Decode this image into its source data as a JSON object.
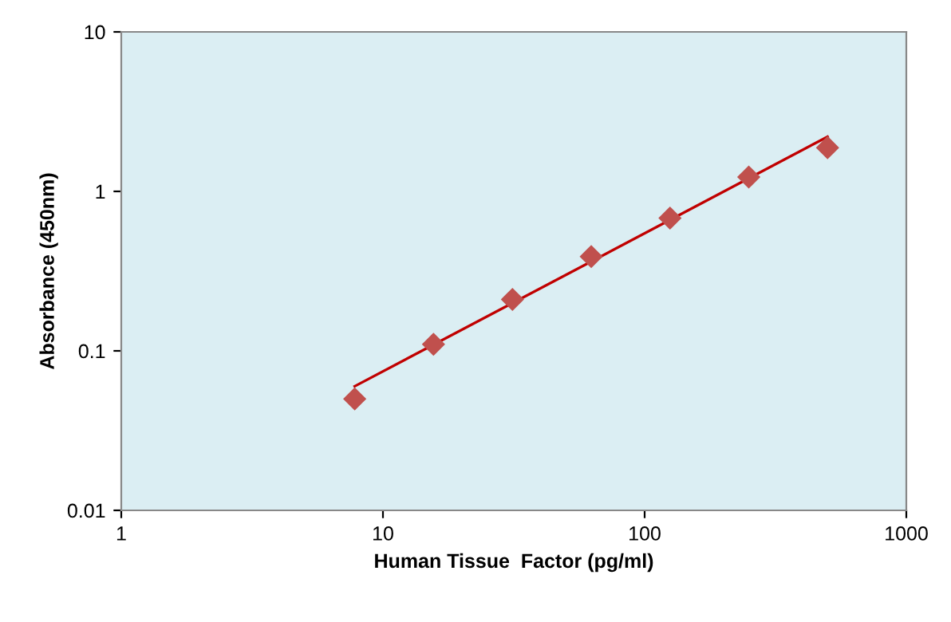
{
  "chart_data": {
    "type": "scatter",
    "xlabel": "Human Tissue  Factor (pg/ml)",
    "ylabel": "Absorbance (450nm)",
    "log": "xy",
    "xlim": [
      1,
      1000
    ],
    "ylim": [
      0.01,
      10
    ],
    "xticks": [
      1,
      10,
      100,
      1000
    ],
    "yticks": [
      0.01,
      0.1,
      1,
      10
    ],
    "grid": false,
    "series": [
      {
        "color": "#c0504d",
        "marker": "diamond",
        "x": [
          7.8,
          15.6,
          31.25,
          62.5,
          125,
          250,
          500
        ],
        "values": [
          0.05,
          0.11,
          0.21,
          0.39,
          0.68,
          1.23,
          1.88
        ]
      },
      {
        "type": "line",
        "color": "#c00000",
        "marker": "none",
        "line_style": "solid",
        "x": [
          7.8,
          500
        ],
        "values": [
          0.06,
          2.2
        ]
      }
    ]
  }
}
